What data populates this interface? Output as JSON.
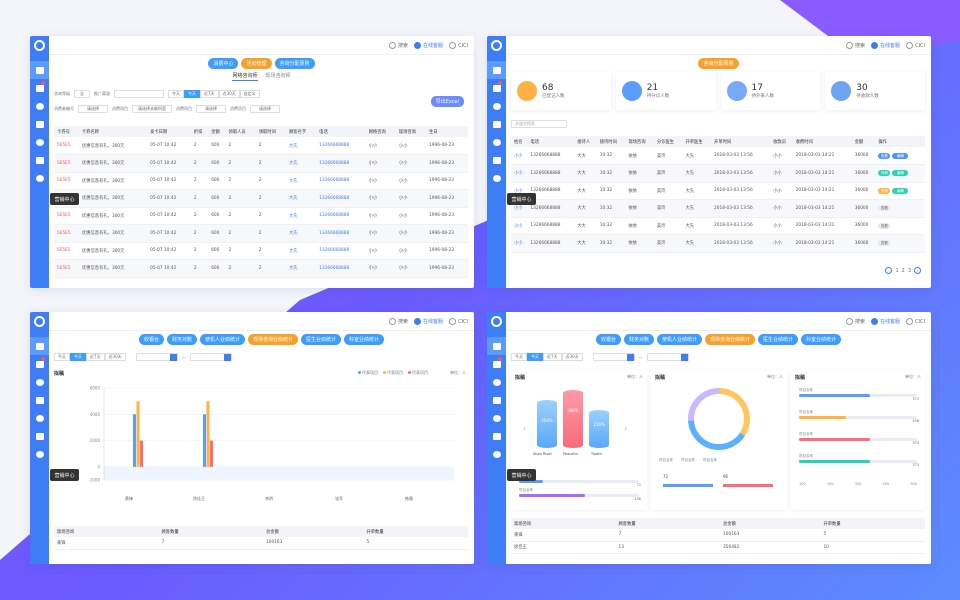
{
  "common": {
    "search_label": "搜索",
    "online_label": "在线客服",
    "user_name": "CICI",
    "tooltip": "营销中心"
  },
  "panel1": {
    "pills": [
      "消费中心",
      "活动管理",
      "咨询分配原则"
    ],
    "subtabs": [
      "网络咨询师",
      "现场咨询师"
    ],
    "filters": {
      "level_label": "咨询等级",
      "level_value": "全",
      "channel_label": "推广渠道",
      "seg": [
        "今天",
        "今天",
        "近7天",
        "近30天",
        "自定义"
      ],
      "export_label": "导出Excel",
      "row2": [
        "消费者编号",
        "请选择",
        "消费项目",
        "请选择关联科室",
        "消费项目",
        "请选择",
        "消费项目",
        "请选择"
      ]
    },
    "table": {
      "headers": [
        "卡券号",
        "卡券名称",
        "发卡日期",
        "折扣",
        "金额",
        "领取人员",
        "领取时间",
        "顾客名字",
        "电话",
        "网络咨询",
        "现场咨询",
        "生日"
      ],
      "rows": [
        [
          "5E5E5",
          "优惠信息有礼，300元",
          "05-07 10:42",
          "2",
          "600",
          "2",
          "2",
          "大先",
          "13266668888",
          "小小",
          "小小",
          "1996-08-23"
        ],
        [
          "5E5E5",
          "优惠信息有礼，300元",
          "05-07 10:42",
          "2",
          "600",
          "2",
          "2",
          "大先",
          "13266668888",
          "小小",
          "小小",
          "1996-08-23"
        ],
        [
          "5E5E5",
          "优惠信息有礼，300元",
          "05-07 10:42",
          "2",
          "600",
          "2",
          "2",
          "大先",
          "13266668888",
          "小小",
          "小小",
          "1996-08-23"
        ],
        [
          "5E5E5",
          "优惠信息有礼，300元",
          "05-07 10:42",
          "2",
          "600",
          "2",
          "2",
          "大先",
          "13266668888",
          "小小",
          "小小",
          "1996-08-23"
        ],
        [
          "5E5E5",
          "优惠信息有礼，300元",
          "05-07 10:42",
          "2",
          "600",
          "2",
          "2",
          "大先",
          "13266668888",
          "小小",
          "小小",
          "1996-08-23"
        ],
        [
          "5E5E5",
          "优惠信息有礼，300元",
          "05-07 10:42",
          "2",
          "600",
          "2",
          "2",
          "大先",
          "13266668888",
          "小小",
          "小小",
          "1996-08-23"
        ],
        [
          "5E5E5",
          "优惠信息有礼，300元",
          "05-07 10:42",
          "2",
          "600",
          "2",
          "2",
          "大先",
          "13266668888",
          "小小",
          "小小",
          "1996-08-23"
        ],
        [
          "5E5E5",
          "优惠信息有礼，300元",
          "05-07 10:42",
          "2",
          "600",
          "2",
          "2",
          "大先",
          "13266668888",
          "小小",
          "小小",
          "1996-08-23"
        ]
      ]
    }
  },
  "panel2": {
    "pills": [
      "咨询分配原则"
    ],
    "cards": [
      {
        "num": "68",
        "label": "已登记人数"
      },
      {
        "num": "21",
        "label": "待分诊人数"
      },
      {
        "num": "17",
        "label": "待外来人数"
      },
      {
        "num": "30",
        "label": "待收款人数"
      }
    ],
    "search_placeholder": "关键字搜索",
    "table": {
      "headers": [
        "姓名",
        "电话",
        "接待人",
        "接待时间",
        "现场咨询",
        "分诊医生",
        "开单医生",
        "开单时间",
        "收款员",
        "收费时间",
        "金额",
        "操作"
      ],
      "rows": [
        [
          "小小",
          "13266668888",
          "大大",
          "10:32",
          "依依",
          "美玲",
          "大先",
          "2018-03-03  13:56",
          "小小",
          "2018-03-03  14:21",
          "36000"
        ],
        [
          "小小",
          "13266668888",
          "大大",
          "10:32",
          "依依",
          "美玲",
          "大先",
          "2018-03-03  13:56",
          "小小",
          "2018-03-03  14:21",
          "36000"
        ],
        [
          "小小",
          "13266668888",
          "大大",
          "10:32",
          "依依",
          "美玲",
          "大先",
          "2018-03-03  13:56",
          "小小",
          "2018-03-03  14:21",
          "36000"
        ],
        [
          "小小",
          "13266668888",
          "大大",
          "10:32",
          "依依",
          "美玲",
          "大先",
          "2018-03-03  13:56",
          "小小",
          "2018-03-03  14:21",
          "36000"
        ],
        [
          "小小",
          "13266668888",
          "大大",
          "10:32",
          "依依",
          "美玲",
          "大先",
          "2018-03-03  13:56",
          "小小",
          "2018-03-03  14:21",
          "36000"
        ],
        [
          "小小",
          "13266668888",
          "大大",
          "10:32",
          "依依",
          "美玲",
          "大先",
          "2018-03-03  13:56",
          "小小",
          "2018-03-03  14:21",
          "36000"
        ]
      ],
      "ops": [
        [
          "查看",
          "编辑"
        ],
        [
          "详情",
          "编辑"
        ],
        [
          "详情",
          "编辑"
        ],
        [
          "查看",
          ""
        ],
        [
          "查看",
          ""
        ],
        [
          "查看",
          ""
        ]
      ]
    },
    "pager": [
      "1",
      "2",
      "3"
    ]
  },
  "panel3": {
    "pills": [
      "收银台",
      "财务对账",
      "使机人业绩统计",
      "现场咨询业绩统计",
      "医生业绩统计",
      "科室业绩统计"
    ],
    "seg": [
      "今天",
      "今天",
      "近7天",
      "近30天"
    ],
    "chart_title": "拟稿",
    "legend": [
      "代表项目",
      "代表项目",
      "代表项目"
    ],
    "unit": "单位：人",
    "summary": {
      "headers": [
        "现场咨询",
        "顾客数量",
        "总金额",
        "开单数量"
      ],
      "rows": [
        [
          "黄锋",
          "7",
          "100163",
          "5"
        ]
      ]
    }
  },
  "chart_data": {
    "type": "bar",
    "categories": [
      "黄锋",
      "徐佳王",
      "李明",
      "张军",
      "韩雅"
    ],
    "series": [
      {
        "name": "代表项目",
        "color": "#5b9dff",
        "values": [
          4000,
          4000,
          0,
          0,
          0
        ]
      },
      {
        "name": "代表项目",
        "color": "#ffb142",
        "values": [
          5000,
          5000,
          0,
          0,
          0
        ]
      },
      {
        "name": "代表项目",
        "color": "#ff6b6b",
        "values": [
          2000,
          2000,
          0,
          0,
          0
        ]
      }
    ],
    "yticks": [
      "6000",
      "4000",
      "2000",
      "0",
      "-1000"
    ],
    "ylim": [
      -1000,
      6000
    ]
  },
  "panel4": {
    "pills": [
      "收银台",
      "财务对账",
      "使机人业绩统计",
      "现场咨询业绩统计",
      "医生业绩统计",
      "科室业绩统计"
    ],
    "seg": [
      "今天",
      "今天",
      "近7天",
      "近30天"
    ],
    "box1": {
      "title": "拟稿",
      "unit": "单位：人",
      "cyl": [
        {
          "v": "264%",
          "name": "Shen River"
        },
        {
          "v": "386%",
          "name": "Peaceful"
        },
        {
          "v": "156%",
          "name": "Tiootii"
        }
      ],
      "bars": [
        {
          "label": "项目名称",
          "val": "72"
        },
        {
          "label": "项目名称",
          "val": "138"
        }
      ]
    },
    "box2": {
      "title": "拟稿",
      "unit": "单位：人",
      "legend": [
        "项目名称",
        "项目名称",
        "项目名称"
      ],
      "stats": [
        {
          "v": "72",
          "l": "项目名称"
        },
        {
          "v": "96",
          "l": "项目名称"
        }
      ]
    },
    "box3": {
      "title": "拟稿",
      "unit": "单位：人",
      "rows": [
        {
          "l": "项目名称",
          "v": "373"
        },
        {
          "l": "项目名称",
          "v": "256"
        },
        {
          "l": "项目名称",
          "v": "373"
        },
        {
          "l": "项目名称",
          "v": "373"
        }
      ],
      "axis": [
        "100",
        "200",
        "300",
        "400",
        "500"
      ]
    },
    "summary": {
      "headers": [
        "现场咨询",
        "顾客数量",
        "总金额",
        "开单数量"
      ],
      "rows": [
        [
          "黄锋",
          "7",
          "100163",
          "5"
        ],
        [
          "徐佳王",
          "13",
          "356482",
          "10"
        ]
      ]
    }
  }
}
